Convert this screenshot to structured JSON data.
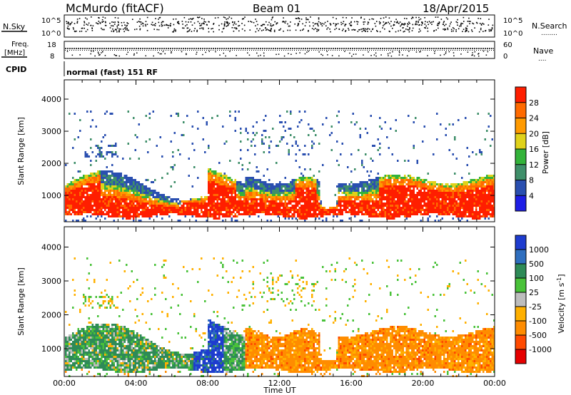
{
  "header": {
    "station": "McMurdo (fitACF)",
    "beam": "Beam 01",
    "date": "18/Apr/2015"
  },
  "noise_panel": {
    "left_label": "N.Sky",
    "right_label": "N.Search",
    "right_dots": "........",
    "left_ticks": [
      "10^5",
      "10^0"
    ],
    "right_ticks": [
      "10^5",
      "10^0"
    ]
  },
  "freq_panel": {
    "left_label_line1": "Freq.",
    "left_label_line2": "[MHz]",
    "right_label": "Nave",
    "right_dots": "....",
    "left_ticks": [
      "18",
      "8"
    ],
    "right_ticks": [
      "60",
      "0"
    ]
  },
  "cpid": {
    "label": "CPID",
    "value": "normal (fast) 151 RF"
  },
  "colors": {
    "power": [
      "#1e1ee6",
      "#2a4fb0",
      "#3f8f6a",
      "#33b33a",
      "#e0d21a",
      "#ff9a00",
      "#ff6a00",
      "#ff1e00"
    ],
    "velocity": [
      "#1e3ccf",
      "#2f6fbf",
      "#2e8b57",
      "#49c239",
      "#bdbdbd",
      "#ffb000",
      "#ff8c00",
      "#ff4a00",
      "#e60000"
    ]
  },
  "chart_data": [
    {
      "type": "heatmap",
      "name": "power",
      "xlabel": "",
      "ylabel": "Slant Range [km]",
      "x_ticks": [
        "00:00",
        "04:00",
        "08:00",
        "12:00",
        "16:00",
        "20:00",
        "00:00"
      ],
      "xlim_hours": [
        0,
        24
      ],
      "y_ticks": [
        1000,
        2000,
        3000,
        4000
      ],
      "ylim": [
        180,
        4600
      ],
      "colorbar": {
        "label": "Power [dB]",
        "range": [
          0,
          32
        ],
        "ticks": [
          4,
          8,
          12,
          16,
          20,
          24,
          28
        ]
      }
    },
    {
      "type": "heatmap",
      "name": "velocity",
      "xlabel": "Time UT",
      "ylabel": "Slant Range [km]",
      "x_ticks": [
        "00:00",
        "04:00",
        "08:00",
        "12:00",
        "16:00",
        "20:00",
        "00:00"
      ],
      "xlim_hours": [
        0,
        24
      ],
      "y_ticks": [
        1000,
        2000,
        3000,
        4000
      ],
      "ylim": [
        180,
        4600
      ],
      "colorbar": {
        "label": "Velocity [m s",
        "label_sup": "-1",
        "label_close": "]",
        "ticks": [
          "1000",
          "500",
          "100",
          "25",
          "-25",
          "-100",
          "-500",
          "-1000"
        ]
      }
    }
  ]
}
